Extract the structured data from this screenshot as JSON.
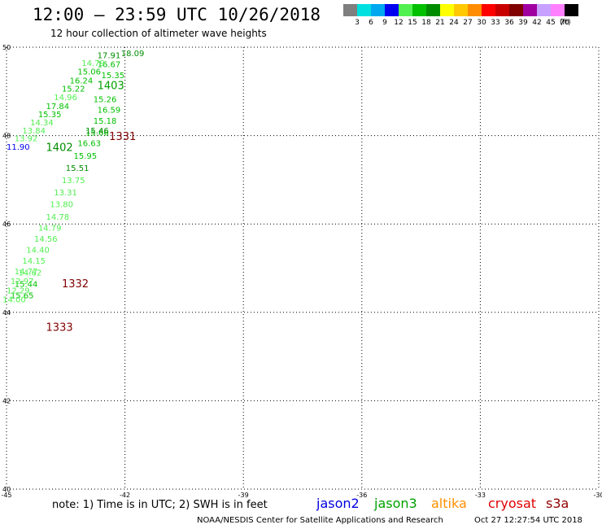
{
  "header": {
    "title": "12:00 – 23:59 UTC 10/26/2018",
    "subtitle": "12 hour collection of altimeter wave heights"
  },
  "color_scale": {
    "unit": "(ft)",
    "bins": [
      {
        "label": "3",
        "color": "#7f7f7f"
      },
      {
        "label": "6",
        "color": "#00e0e0"
      },
      {
        "label": "9",
        "color": "#00a8f0"
      },
      {
        "label": "12",
        "color": "#0000f0"
      },
      {
        "label": "15",
        "color": "#50f050"
      },
      {
        "label": "18",
        "color": "#00c000"
      },
      {
        "label": "21",
        "color": "#008c00"
      },
      {
        "label": "24",
        "color": "#ffff00"
      },
      {
        "label": "27",
        "color": "#ffc800"
      },
      {
        "label": "30",
        "color": "#ff8c00"
      },
      {
        "label": "33",
        "color": "#ff0000"
      },
      {
        "label": "36",
        "color": "#c80000"
      },
      {
        "label": "39",
        "color": "#800000"
      },
      {
        "label": "42",
        "color": "#a000a0"
      },
      {
        "label": "45",
        "color": "#c8a0ff"
      },
      {
        "label": "70",
        "color": "#ff80ff"
      },
      {
        "label": "",
        "color": "#000000"
      }
    ]
  },
  "chart_data": {
    "type": "scatter",
    "xlim": [
      -45,
      -30
    ],
    "ylim": [
      40,
      50
    ],
    "grid": true,
    "x_ticks": [
      "-45",
      "-42",
      "-39",
      "-36",
      "-33",
      "-30"
    ],
    "y_ticks": [
      "40",
      "42",
      "44",
      "46",
      "48",
      "50"
    ],
    "points": [
      {
        "lon": -42.1,
        "lat": 49.8,
        "swh": "18.09",
        "color": "#008c00"
      },
      {
        "lon": -42.7,
        "lat": 49.75,
        "swh": "17.91",
        "color": "#008c00"
      },
      {
        "lon": -42.7,
        "lat": 49.55,
        "swh": "16.67",
        "color": "#00c000"
      },
      {
        "lon": -43.1,
        "lat": 49.58,
        "swh": "14.79",
        "color": "#50f050"
      },
      {
        "lon": -42.6,
        "lat": 49.3,
        "swh": "15.35",
        "color": "#00c000"
      },
      {
        "lon": -43.2,
        "lat": 49.38,
        "swh": "15.06",
        "color": "#00c000"
      },
      {
        "lon": -43.4,
        "lat": 49.18,
        "swh": "16.24",
        "color": "#00c000"
      },
      {
        "lon": -43.6,
        "lat": 49.0,
        "swh": "15.22",
        "color": "#00c000"
      },
      {
        "lon": -43.8,
        "lat": 48.8,
        "swh": "14.96",
        "color": "#50f050"
      },
      {
        "lon": -44.0,
        "lat": 48.6,
        "swh": "17.84",
        "color": "#00c000"
      },
      {
        "lon": -44.2,
        "lat": 48.42,
        "swh": "15.35",
        "color": "#00c000"
      },
      {
        "lon": -44.4,
        "lat": 48.23,
        "swh": "14.34",
        "color": "#50f050"
      },
      {
        "lon": -44.6,
        "lat": 48.05,
        "swh": "13.84",
        "color": "#50f050"
      },
      {
        "lon": -44.8,
        "lat": 47.87,
        "swh": "13.92",
        "color": "#50f050"
      },
      {
        "lon": -45.0,
        "lat": 47.68,
        "swh": "11.90",
        "color": "#0000f0"
      },
      {
        "lon": -42.8,
        "lat": 48.76,
        "swh": "15.26",
        "color": "#00c000"
      },
      {
        "lon": -42.7,
        "lat": 48.52,
        "swh": "16.59",
        "color": "#00c000"
      },
      {
        "lon": -42.8,
        "lat": 48.27,
        "swh": "15.18",
        "color": "#00c000"
      },
      {
        "lon": -43.0,
        "lat": 48.0,
        "swh": "15.66",
        "color": "#00c000"
      },
      {
        "lon": -43.0,
        "lat": 48.05,
        "swh": "15.46",
        "color": "#008c00"
      },
      {
        "lon": -43.2,
        "lat": 47.76,
        "swh": "16.63",
        "color": "#00c000"
      },
      {
        "lon": -43.3,
        "lat": 47.48,
        "swh": "15.95",
        "color": "#00c000"
      },
      {
        "lon": -43.5,
        "lat": 47.2,
        "swh": "15.51",
        "color": "#008c00"
      },
      {
        "lon": -43.6,
        "lat": 46.92,
        "swh": "13.75",
        "color": "#50f050"
      },
      {
        "lon": -43.8,
        "lat": 46.65,
        "swh": "13.31",
        "color": "#50f050"
      },
      {
        "lon": -43.9,
        "lat": 46.38,
        "swh": "13.80",
        "color": "#50f050"
      },
      {
        "lon": -44.0,
        "lat": 46.1,
        "swh": "14.78",
        "color": "#50f050"
      },
      {
        "lon": -44.2,
        "lat": 45.85,
        "swh": "14.79",
        "color": "#50f050"
      },
      {
        "lon": -44.3,
        "lat": 45.6,
        "swh": "14.56",
        "color": "#50f050"
      },
      {
        "lon": -44.5,
        "lat": 45.35,
        "swh": "14.40",
        "color": "#50f050"
      },
      {
        "lon": -44.6,
        "lat": 45.1,
        "swh": "14.15",
        "color": "#50f050"
      },
      {
        "lon": -44.7,
        "lat": 44.83,
        "swh": "14.62",
        "color": "#50f050"
      },
      {
        "lon": -44.8,
        "lat": 44.58,
        "swh": "15.44",
        "color": "#00c000"
      },
      {
        "lon": -44.9,
        "lat": 44.32,
        "swh": "15.65",
        "color": "#00c000"
      },
      {
        "lon": -44.8,
        "lat": 44.86,
        "swh": "14.77",
        "color": "#50f050"
      },
      {
        "lon": -44.9,
        "lat": 44.64,
        "swh": "12.97",
        "color": "#50f050"
      },
      {
        "lon": -45.0,
        "lat": 44.43,
        "swh": "12.29",
        "color": "#50f050"
      },
      {
        "lon": -45.1,
        "lat": 44.23,
        "swh": "14.00",
        "color": "#50f050"
      }
    ],
    "pass_labels": [
      {
        "lon": -42.7,
        "lat": 49.05,
        "text": "1403",
        "color": "#00a000"
      },
      {
        "lon": -44.0,
        "lat": 47.65,
        "text": "1402",
        "color": "#008c00"
      },
      {
        "lon": -42.4,
        "lat": 47.9,
        "text": "1331",
        "color": "#800000"
      },
      {
        "lon": -43.6,
        "lat": 44.57,
        "text": "1332",
        "color": "#800000"
      },
      {
        "lon": -44.0,
        "lat": 43.58,
        "text": "1333",
        "color": "#800000"
      }
    ]
  },
  "footer": {
    "note": "note: 1) Time is in UTC; 2) SWH is in feet",
    "satellites": [
      {
        "name": "jason2",
        "color": "#0000e0"
      },
      {
        "name": "jason3",
        "color": "#00a000"
      },
      {
        "name": "altika",
        "color": "#ff9000"
      },
      {
        "name": "cryosat",
        "color": "#e00000"
      },
      {
        "name": "s3a",
        "color": "#900000"
      }
    ],
    "credit": "NOAA/NESDIS Center for Satellite Applications and Research",
    "timestamp": "Oct 27 12:27:54 UTC 2018"
  }
}
